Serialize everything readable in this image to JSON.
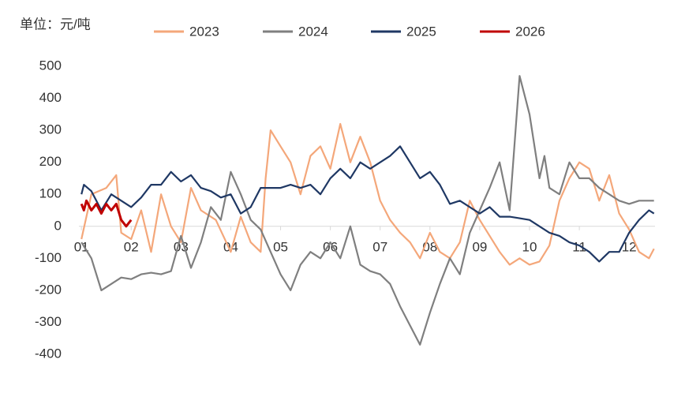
{
  "chart_data": {
    "type": "line",
    "unit_label": "单位：元/吨",
    "xlim": [
      0.95,
      12.52
    ],
    "ylim": [
      -400,
      500
    ],
    "yticks": [
      -400,
      -300,
      -200,
      -100,
      0,
      100,
      200,
      300,
      400,
      500
    ],
    "xticks": [
      {
        "value": 1,
        "label": "01"
      },
      {
        "value": 2,
        "label": "02"
      },
      {
        "value": 3,
        "label": "03"
      },
      {
        "value": 4,
        "label": "04"
      },
      {
        "value": 5,
        "label": "05"
      },
      {
        "value": 6,
        "label": "06"
      },
      {
        "value": 7,
        "label": "07"
      },
      {
        "value": 8,
        "label": "08"
      },
      {
        "value": 9,
        "label": "09"
      },
      {
        "value": 10,
        "label": "10"
      },
      {
        "value": 11,
        "label": "11"
      },
      {
        "value": 12,
        "label": "12"
      }
    ],
    "series": [
      {
        "name": "2023",
        "color": "#f4a77a",
        "x": [
          1.0,
          1.2,
          1.5,
          1.7,
          1.8,
          2.0,
          2.2,
          2.4,
          2.6,
          2.8,
          3.0,
          3.2,
          3.4,
          3.7,
          4.0,
          4.2,
          4.4,
          4.6,
          4.7,
          4.8,
          5.0,
          5.2,
          5.4,
          5.6,
          5.8,
          6.0,
          6.2,
          6.4,
          6.6,
          6.8,
          7.0,
          7.2,
          7.4,
          7.6,
          7.8,
          8.0,
          8.2,
          8.4,
          8.6,
          8.8,
          9.0,
          9.2,
          9.4,
          9.6,
          9.8,
          10.0,
          10.2,
          10.4,
          10.6,
          10.8,
          11.0,
          11.2,
          11.4,
          11.6,
          11.8,
          12.0,
          12.2,
          12.4,
          12.5
        ],
        "values": [
          -40,
          100,
          120,
          160,
          -20,
          -40,
          50,
          -80,
          100,
          0,
          -50,
          120,
          50,
          20,
          -80,
          30,
          -50,
          -80,
          150,
          300,
          250,
          200,
          100,
          220,
          250,
          180,
          320,
          200,
          280,
          200,
          80,
          20,
          -20,
          -50,
          -100,
          -20,
          -80,
          -100,
          -50,
          80,
          20,
          -30,
          -80,
          -120,
          -100,
          -120,
          -110,
          -60,
          80,
          150,
          200,
          180,
          80,
          160,
          40,
          -10,
          -80,
          -100,
          -70
        ]
      },
      {
        "name": "2024",
        "color": "#7f7f7f",
        "x": [
          1.0,
          1.2,
          1.4,
          1.6,
          1.8,
          2.0,
          2.2,
          2.4,
          2.6,
          2.8,
          3.0,
          3.2,
          3.4,
          3.6,
          3.8,
          4.0,
          4.2,
          4.4,
          4.6,
          4.8,
          5.0,
          5.2,
          5.4,
          5.6,
          5.8,
          6.0,
          6.2,
          6.4,
          6.6,
          6.8,
          7.0,
          7.2,
          7.4,
          7.6,
          7.8,
          8.0,
          8.2,
          8.4,
          8.6,
          8.8,
          9.0,
          9.2,
          9.4,
          9.6,
          9.8,
          10.0,
          10.1,
          10.2,
          10.3,
          10.4,
          10.6,
          10.8,
          11.0,
          11.2,
          11.4,
          11.6,
          11.8,
          12.0,
          12.2,
          12.4,
          12.5
        ],
        "values": [
          -50,
          -100,
          -200,
          -180,
          -160,
          -165,
          -150,
          -145,
          -150,
          -140,
          -30,
          -130,
          -50,
          60,
          20,
          170,
          100,
          20,
          -10,
          -80,
          -150,
          -200,
          -120,
          -80,
          -100,
          -50,
          -100,
          0,
          -120,
          -140,
          -150,
          -180,
          -250,
          -310,
          -370,
          -270,
          -180,
          -100,
          -150,
          -20,
          50,
          120,
          200,
          50,
          470,
          350,
          250,
          150,
          220,
          120,
          100,
          200,
          150,
          150,
          120,
          100,
          80,
          70,
          80,
          80,
          80
        ]
      },
      {
        "name": "2025",
        "color": "#1f3864",
        "x": [
          1.0,
          1.05,
          1.2,
          1.4,
          1.6,
          1.8,
          2.0,
          2.2,
          2.4,
          2.6,
          2.8,
          3.0,
          3.2,
          3.4,
          3.6,
          3.8,
          4.0,
          4.2,
          4.4,
          4.6,
          4.8,
          5.0,
          5.2,
          5.4,
          5.6,
          5.8,
          6.0,
          6.2,
          6.4,
          6.6,
          6.8,
          7.0,
          7.2,
          7.4,
          7.6,
          7.8,
          8.0,
          8.2,
          8.4,
          8.6,
          8.8,
          9.0,
          9.2,
          9.4,
          9.6,
          9.8,
          10.0,
          10.2,
          10.4,
          10.6,
          10.8,
          11.0,
          11.2,
          11.4,
          11.6,
          11.8,
          12.0,
          12.2,
          12.4,
          12.5
        ],
        "values": [
          100,
          130,
          110,
          50,
          100,
          80,
          60,
          90,
          130,
          130,
          170,
          140,
          160,
          120,
          110,
          90,
          100,
          40,
          60,
          120,
          120,
          120,
          130,
          120,
          130,
          100,
          150,
          180,
          150,
          200,
          180,
          200,
          220,
          250,
          200,
          150,
          170,
          130,
          70,
          80,
          60,
          40,
          60,
          30,
          30,
          25,
          20,
          0,
          -20,
          -30,
          -50,
          -60,
          -80,
          -110,
          -80,
          -80,
          -20,
          20,
          50,
          40
        ]
      },
      {
        "name": "2026",
        "color": "#c00000",
        "x": [
          1.0,
          1.05,
          1.1,
          1.2,
          1.3,
          1.4,
          1.5,
          1.6,
          1.7,
          1.8,
          1.9,
          2.0
        ],
        "values": [
          70,
          50,
          80,
          50,
          70,
          40,
          70,
          50,
          70,
          20,
          0,
          20
        ]
      }
    ]
  }
}
